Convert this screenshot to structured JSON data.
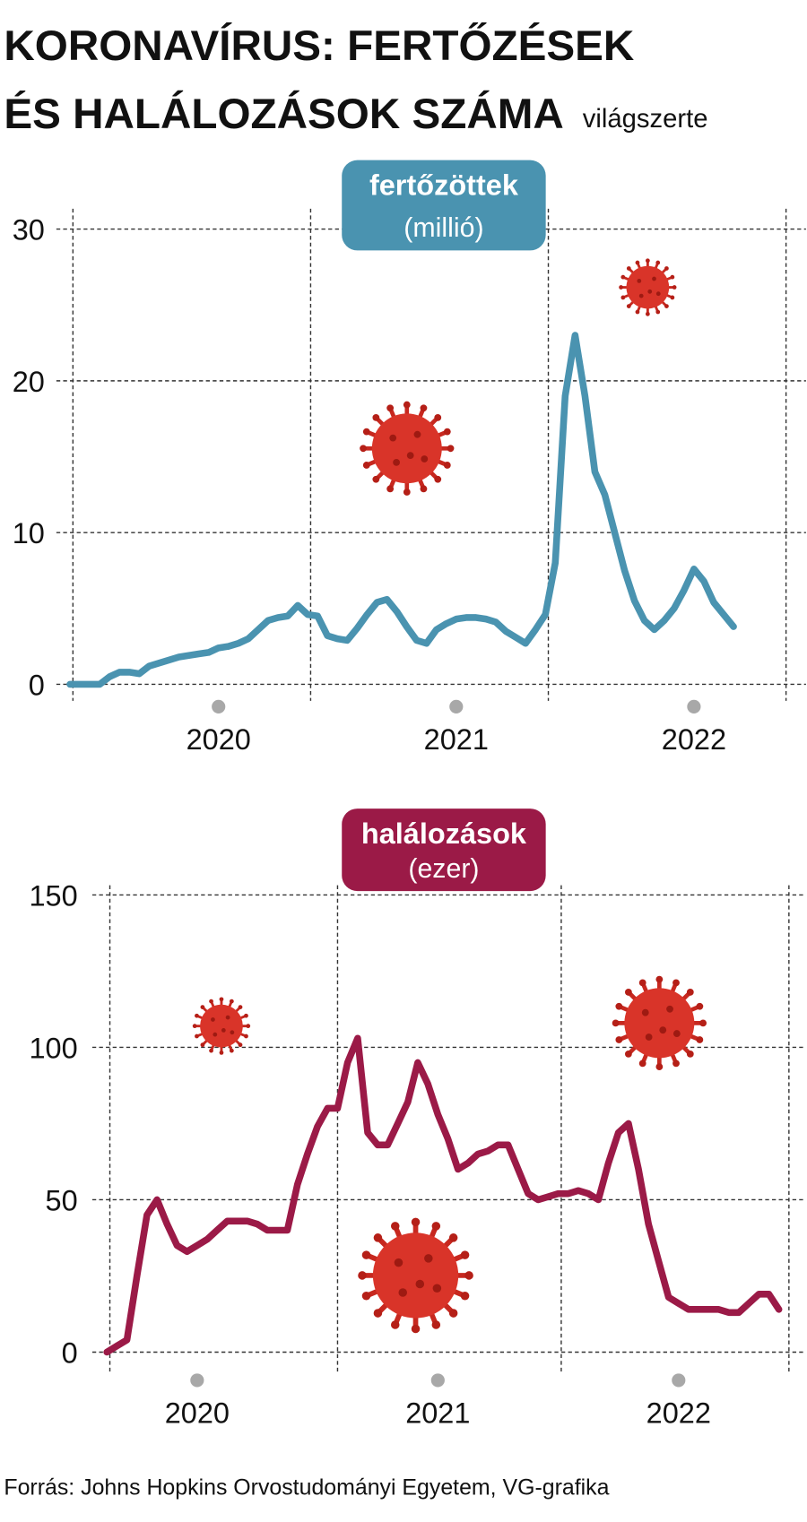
{
  "title": [
    "KORONAVÍRUS: FERTŐZÉSEK",
    "ÉS HALÁLOZÁSOK SZÁMA"
  ],
  "subtitle": "világszerte",
  "source": "Forrás: Johns Hopkins Orvostudományi Egyetem, VG-grafika",
  "chart_data": [
    {
      "type": "line",
      "title": "fertőzöttek",
      "subtitle": "(millió)",
      "color": "#4a93b0",
      "categories": [
        null,
        null,
        null,
        null,
        null,
        null,
        null,
        null,
        null,
        null,
        null,
        null,
        null,
        null,
        null,
        "2020",
        null,
        null,
        null,
        null,
        null,
        null,
        null,
        null,
        null,
        null,
        null,
        null,
        null,
        null,
        null,
        null,
        null,
        null,
        null,
        null,
        null,
        null,
        null,
        "2021",
        null,
        null,
        null,
        null,
        null,
        null,
        null,
        null,
        null,
        null,
        null,
        null,
        null,
        null,
        null,
        null,
        null,
        null,
        null,
        null,
        null,
        null,
        null,
        "2022",
        null,
        null,
        null,
        null
      ],
      "values": [
        0,
        0,
        0,
        0,
        0.5,
        0.8,
        0.8,
        0.7,
        1.2,
        1.4,
        1.6,
        1.8,
        1.9,
        2.0,
        2.1,
        2.4,
        2.5,
        2.7,
        3.0,
        3.6,
        4.2,
        4.4,
        4.5,
        5.2,
        4.6,
        4.5,
        3.2,
        3.0,
        2.9,
        3.7,
        4.6,
        5.4,
        5.6,
        4.8,
        3.8,
        2.9,
        2.7,
        3.6,
        4.0,
        4.3,
        4.4,
        4.4,
        4.3,
        4.1,
        3.5,
        3.1,
        2.7,
        3.6,
        4.6,
        8,
        19,
        23,
        19,
        14,
        12.5,
        10,
        7.5,
        5.5,
        4.2,
        3.6,
        4.2,
        5.0,
        6.2,
        7.6,
        6.8,
        5.4,
        4.6,
        3.8
      ],
      "ylim": [
        0,
        30
      ],
      "yticks": [
        0,
        10,
        20,
        30
      ],
      "grid": true
    },
    {
      "type": "line",
      "title": "halálozások",
      "subtitle": "(ezer)",
      "color": "#9b1a47",
      "categories": [
        null,
        null,
        null,
        null,
        null,
        null,
        null,
        null,
        null,
        "2020",
        null,
        null,
        null,
        null,
        null,
        null,
        null,
        null,
        null,
        null,
        null,
        null,
        null,
        null,
        null,
        null,
        null,
        null,
        null,
        null,
        null,
        null,
        null,
        "2021",
        null,
        null,
        null,
        null,
        null,
        null,
        null,
        null,
        null,
        null,
        null,
        null,
        null,
        null,
        null,
        null,
        null,
        null,
        null,
        null,
        null,
        null,
        null,
        "2022",
        null,
        null,
        null,
        null,
        null,
        null,
        null,
        null,
        null,
        null
      ],
      "values": [
        0,
        2,
        4,
        25,
        45,
        50,
        42,
        35,
        33,
        35,
        37,
        40,
        43,
        43,
        43,
        42,
        40,
        40,
        40,
        55,
        65,
        74,
        80,
        80,
        95,
        103,
        72,
        68,
        68,
        75,
        82,
        95,
        88,
        78,
        70,
        60,
        62,
        65,
        66,
        68,
        68,
        60,
        52,
        50,
        51,
        52,
        52,
        53,
        52,
        50,
        62,
        72,
        75,
        60,
        42,
        30,
        18,
        16,
        14,
        14,
        14,
        14,
        13,
        13,
        16,
        19,
        19,
        14
      ],
      "ylim": [
        0,
        150
      ],
      "yticks": [
        0,
        50,
        100,
        150
      ],
      "grid": true
    }
  ]
}
